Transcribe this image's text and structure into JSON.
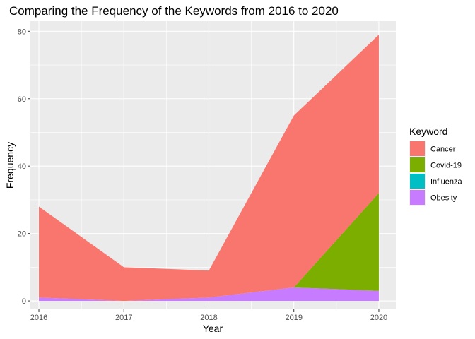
{
  "chart_data": {
    "type": "area",
    "stacked": true,
    "title": "Comparing the Frequency of the Keywords from 2016 to 2020",
    "xlabel": "Year",
    "ylabel": "Frequency",
    "x": [
      2016,
      2017,
      2018,
      2019,
      2020
    ],
    "x_tick_labels": [
      "2016",
      "2017",
      "2018",
      "2019",
      "2020"
    ],
    "xlim": [
      2015.9,
      2020.2
    ],
    "y_ticks": [
      0,
      20,
      40,
      60,
      80
    ],
    "y_tick_labels": [
      "0",
      "20",
      "40",
      "60",
      "80"
    ],
    "ylim": [
      -2.5,
      83
    ],
    "grid": true,
    "legend": {
      "title": "Keyword",
      "position": "right"
    },
    "series": [
      {
        "name": "Cancer",
        "color": "#F8766D",
        "values": [
          27,
          10,
          8,
          51,
          47
        ]
      },
      {
        "name": "Covid-19",
        "color": "#7CAE00",
        "values": [
          0,
          0,
          0,
          0,
          29
        ]
      },
      {
        "name": "Influenza",
        "color": "#00BFC4",
        "values": [
          0,
          0,
          0,
          0,
          0
        ]
      },
      {
        "name": "Obesity",
        "color": "#C77CFF",
        "values": [
          1,
          0,
          1,
          4,
          3
        ]
      }
    ]
  }
}
